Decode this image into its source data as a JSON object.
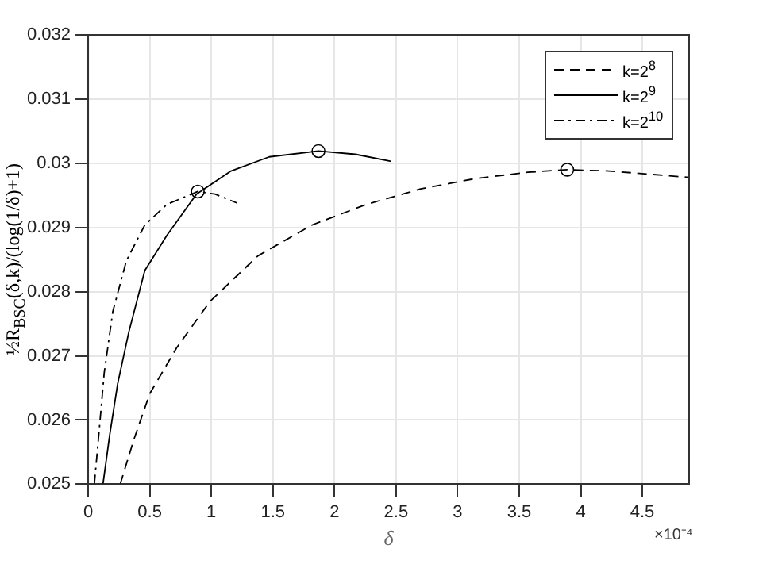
{
  "chart_data": {
    "type": "line",
    "xlabel": "δ",
    "ylabel": "½R$_{BSC}$(δ,k)/(log(1/δ)+1)",
    "annotations": [
      "×10⁻⁴"
    ],
    "xlim": [
      0,
      4.88
    ],
    "xticks": [
      0,
      0.5,
      1,
      1.5,
      2,
      2.5,
      3,
      3.5,
      4,
      4.5
    ],
    "ylim": [
      0.025,
      0.032
    ],
    "yticks": [
      0.025,
      0.026,
      0.027,
      0.028,
      0.029,
      0.03,
      0.031,
      0.032
    ],
    "grid": true,
    "legend": "top right",
    "marker": "none",
    "series": [
      {
        "name": "k=2$^{8}$",
        "color": "#000000",
        "line_style": "dashed",
        "x": [
          0.26,
          0.37,
          0.5,
          0.72,
          0.99,
          1.38,
          1.82,
          2.26,
          2.7,
          3.14,
          3.57,
          3.89,
          4.23,
          4.88
        ],
        "values": [
          0.025,
          0.02569,
          0.02641,
          0.02713,
          0.02785,
          0.02856,
          0.02904,
          0.02936,
          0.0296,
          0.02976,
          0.02986,
          0.0299,
          0.02988,
          0.02978
        ]
      },
      {
        "name": "k=2$^{9}$",
        "color": "#000000",
        "line_style": "solid",
        "x": [
          0.12,
          0.175,
          0.24,
          0.33,
          0.46,
          0.64,
          0.88,
          1.16,
          1.47,
          1.87,
          2.17,
          2.46
        ],
        "values": [
          0.025,
          0.02577,
          0.02657,
          0.02737,
          0.02833,
          0.02888,
          0.02952,
          0.02988,
          0.0301,
          0.03019,
          0.03014,
          0.03003
        ]
      },
      {
        "name": "k=2$^{10}$",
        "color": "#000000",
        "line_style": "dashdot",
        "x": [
          0.05,
          0.09,
          0.13,
          0.2,
          0.31,
          0.46,
          0.64,
          0.89,
          1.03,
          1.21
        ],
        "values": [
          0.025,
          0.02585,
          0.02673,
          0.02769,
          0.02848,
          0.02904,
          0.02936,
          0.02956,
          0.02952,
          0.02938
        ]
      },
      {
        "type": "scatter",
        "marker": "circle",
        "color": "#000000",
        "x": [
          0.89,
          1.87,
          3.89
        ],
        "values": [
          0.02956,
          0.03019,
          0.0299
        ]
      }
    ]
  }
}
